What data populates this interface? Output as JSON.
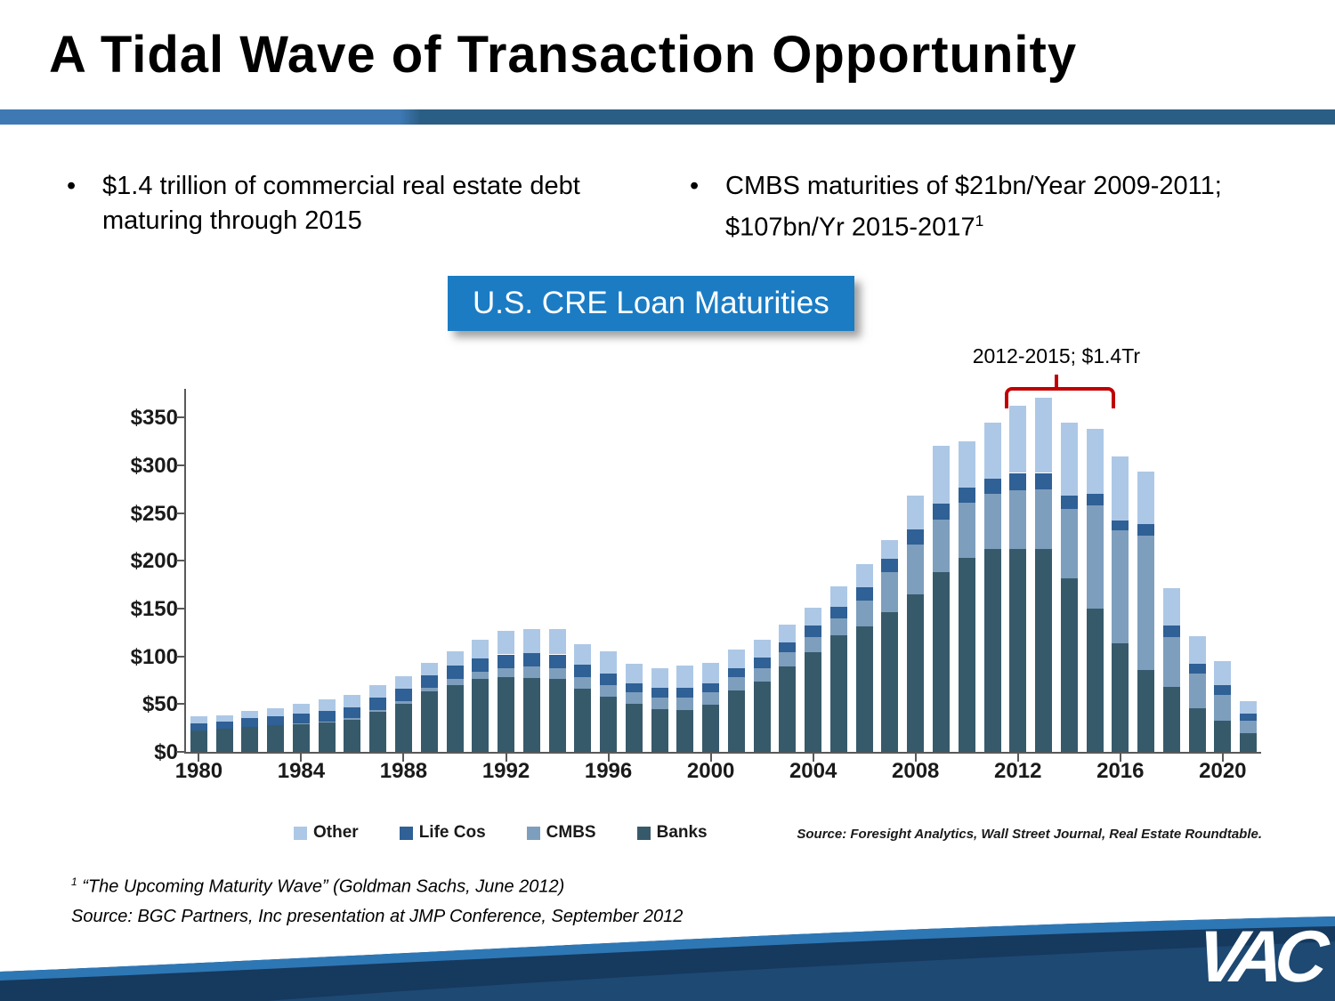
{
  "slide": {
    "title": "A Tidal Wave of Transaction Opportunity",
    "bullet_left": "$1.4 trillion of commercial real estate debt maturing through 2015",
    "bullet_right": "CMBS maturities of $21bn/Year 2009-2011; $107bn/Yr 2015-2017",
    "bullet_right_sup": "1",
    "chart_header": "U.S. CRE Loan Maturities",
    "footnote1_sup": "1",
    "footnote1": "“The Upcoming Maturity Wave” (Goldman Sachs, June 2012)",
    "footnote2": "Source: BGC Partners, Inc presentation at JMP Conference, September 2012",
    "logo": "VAC"
  },
  "chart_data": {
    "type": "bar",
    "stacked": true,
    "title": "U.S. CRE Loan Maturities",
    "categories": [
      1980,
      1981,
      1982,
      1983,
      1984,
      1985,
      1986,
      1987,
      1988,
      1989,
      1990,
      1991,
      1992,
      1993,
      1994,
      1995,
      1996,
      1997,
      1998,
      1999,
      2000,
      2001,
      2002,
      2003,
      2004,
      2005,
      2006,
      2007,
      2008,
      2009,
      2010,
      2011,
      2012,
      2013,
      2014,
      2015,
      2016,
      2017,
      2018,
      2019,
      2020,
      2021
    ],
    "series": [
      {
        "name": "Banks",
        "color": "#375A6B",
        "values": [
          22,
          24,
          26,
          28,
          29,
          31,
          34,
          42,
          50,
          63,
          70,
          76,
          78,
          77,
          76,
          66,
          58,
          50,
          45,
          44,
          49,
          64,
          74,
          89,
          104,
          122,
          131,
          146,
          165,
          188,
          203,
          212,
          212,
          212,
          182,
          150,
          114,
          86,
          68,
          46,
          33,
          20
        ]
      },
      {
        "name": "CMBS",
        "color": "#7E9EBD",
        "values": [
          0,
          0,
          0,
          0,
          1,
          1,
          1,
          2,
          3,
          4,
          6,
          8,
          10,
          12,
          12,
          12,
          12,
          12,
          12,
          13,
          13,
          14,
          14,
          15,
          16,
          18,
          27,
          42,
          52,
          55,
          58,
          58,
          62,
          63,
          72,
          108,
          118,
          140,
          52,
          36,
          27,
          13
        ]
      },
      {
        "name": "Life Cos",
        "color": "#2F6096",
        "values": [
          8,
          8,
          9,
          9,
          10,
          11,
          12,
          13,
          13,
          13,
          14,
          14,
          14,
          14,
          14,
          13,
          12,
          10,
          10,
          10,
          10,
          10,
          11,
          11,
          12,
          12,
          14,
          14,
          16,
          17,
          16,
          16,
          18,
          17,
          14,
          12,
          10,
          12,
          12,
          10,
          10,
          7
        ]
      },
      {
        "name": "Other",
        "color": "#ADC8E6",
        "values": [
          7,
          6,
          8,
          9,
          10,
          12,
          13,
          13,
          13,
          13,
          15,
          19,
          25,
          26,
          27,
          22,
          23,
          20,
          21,
          23,
          21,
          19,
          18,
          18,
          19,
          21,
          25,
          20,
          35,
          60,
          48,
          59,
          70,
          79,
          77,
          68,
          67,
          55,
          39,
          29,
          25,
          13
        ]
      }
    ],
    "legend": [
      "Other",
      "Life Cos",
      "CMBS",
      "Banks"
    ],
    "y_axis": {
      "max": 380,
      "ticks": [
        {
          "value": 0,
          "label": "$0"
        },
        {
          "value": 50,
          "label": "$50"
        },
        {
          "value": 100,
          "label": "$100"
        },
        {
          "value": 150,
          "label": "$150"
        },
        {
          "value": 200,
          "label": "$200"
        },
        {
          "value": 250,
          "label": "$250"
        },
        {
          "value": 300,
          "label": "$300"
        },
        {
          "value": 350,
          "label": "$350"
        }
      ]
    },
    "x_axis": {
      "tick_labels": [
        "1980",
        "1984",
        "1988",
        "1992",
        "1996",
        "2000",
        "2004",
        "2008",
        "2012",
        "2016",
        "2020"
      ]
    },
    "annotations": [
      {
        "text": "2012-2015; $1.4Tr",
        "from": 2012,
        "to": 2015,
        "color": "#C00000"
      }
    ],
    "source": "Source: Foresight Analytics, Wall Street Journal, Real Estate Roundtable."
  }
}
